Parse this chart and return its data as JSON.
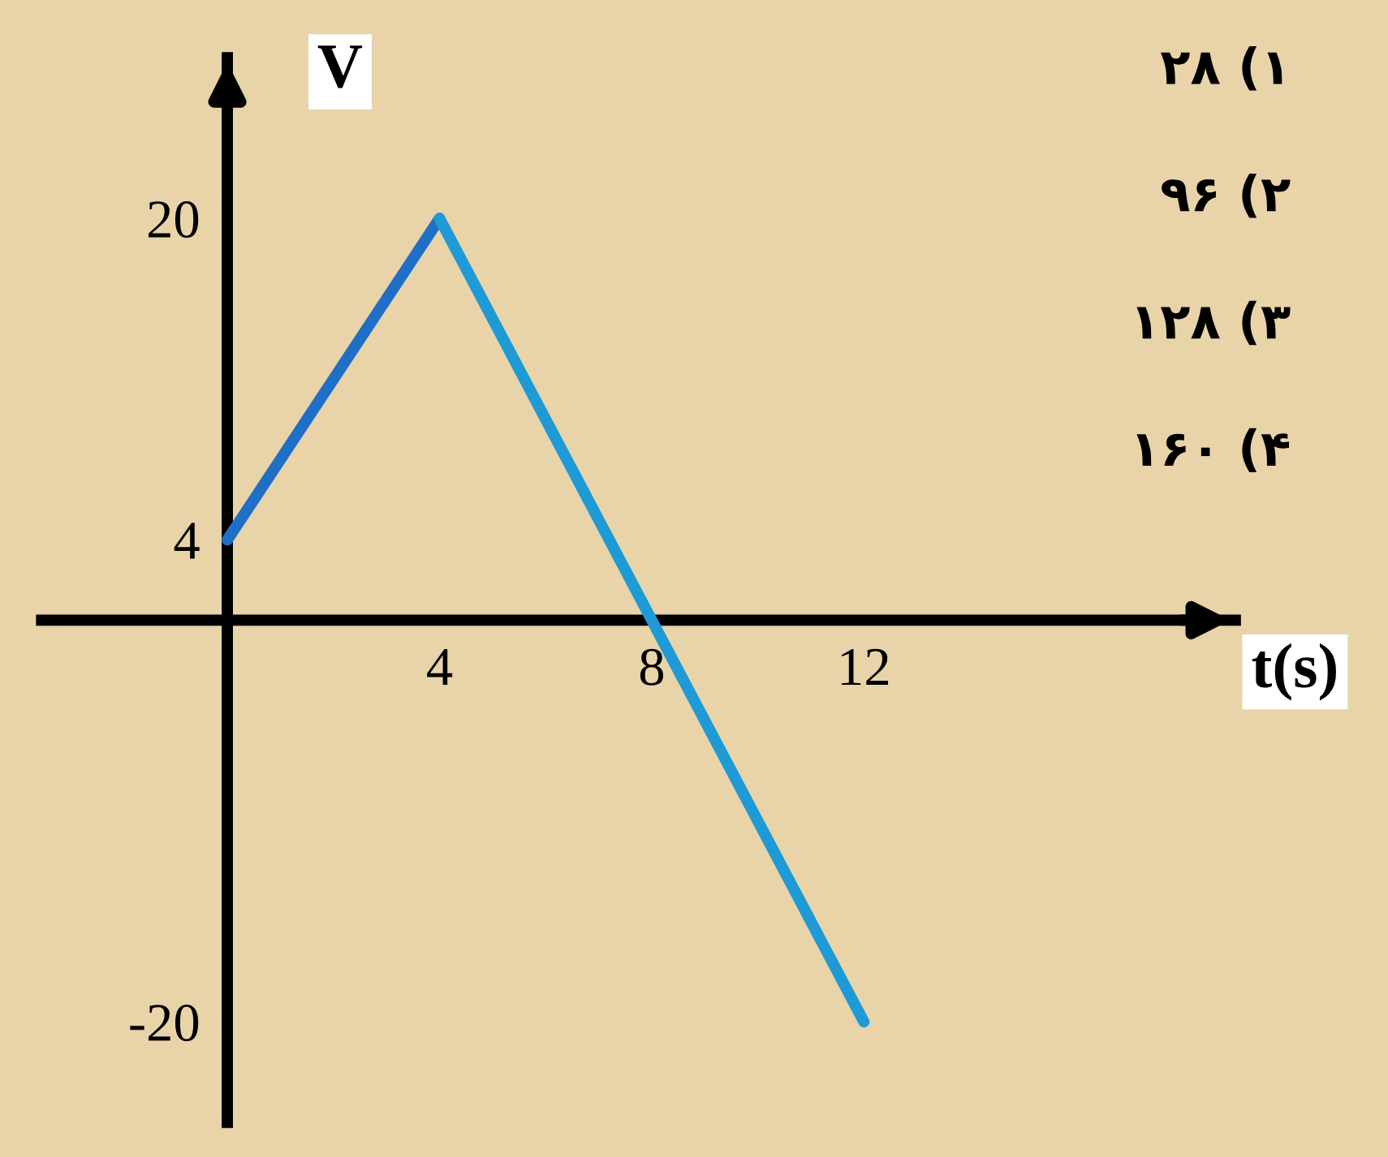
{
  "chart_data": {
    "type": "line",
    "xlabel": "t(s)",
    "ylabel": "V",
    "series": [
      {
        "color": "#1f6fc8",
        "x": [
          0,
          4
        ],
        "values": [
          4,
          20
        ]
      },
      {
        "color": "#1e9ad6",
        "x": [
          4,
          12
        ],
        "values": [
          20,
          -20
        ]
      }
    ],
    "xlim": [
      -3.5,
      19
    ],
    "ylim": [
      -25,
      28
    ],
    "xticks": [
      4,
      8,
      12
    ],
    "yticks": [
      -20,
      4,
      20
    ],
    "grid": false,
    "legend": false,
    "marker": "none",
    "line_style": "solid",
    "annotations": [
      "۲۸ (۱",
      "۹۶ (۲",
      "۱۲۸ (۳",
      "۱۶۰ (۴"
    ]
  }
}
